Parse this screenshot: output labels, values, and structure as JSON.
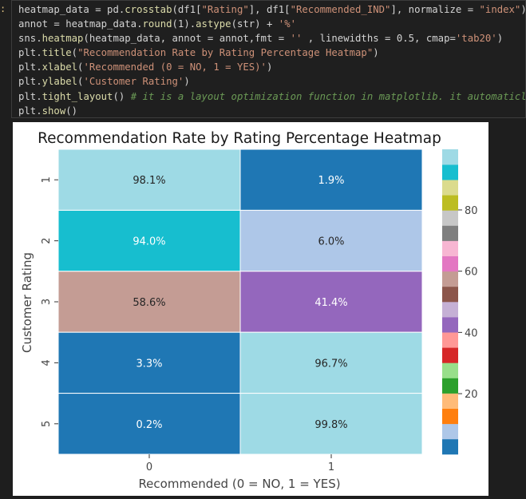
{
  "cell": {
    "prompt": ":",
    "lines": [
      [
        [
          "var",
          "heatmap_data = pd."
        ],
        [
          "fn",
          "crosstab"
        ],
        [
          "var",
          "(df1["
        ],
        [
          "str",
          "\"Rating\""
        ],
        [
          "var",
          "], df1["
        ],
        [
          "str",
          "\"Recommended_IND\""
        ],
        [
          "var",
          "], normalize = "
        ],
        [
          "str",
          "\"index\""
        ],
        [
          "var",
          ") "
        ],
        [
          "op",
          "*"
        ]
      ],
      [
        [
          "var",
          "annot = heatmap_data."
        ],
        [
          "fn",
          "round"
        ],
        [
          "var",
          "(1)."
        ],
        [
          "fn",
          "astype"
        ],
        [
          "var",
          "(str) + "
        ],
        [
          "str",
          "'%'"
        ]
      ],
      [
        [
          "var",
          "sns."
        ],
        [
          "fn",
          "heatmap"
        ],
        [
          "var",
          "(heatmap_data, annot = annot,fmt = "
        ],
        [
          "str",
          "''"
        ],
        [
          "var",
          " , linewidths = 0.5, cmap="
        ],
        [
          "str",
          "'tab20'"
        ],
        [
          "var",
          ")"
        ]
      ],
      [
        [
          "var",
          "plt."
        ],
        [
          "fn",
          "title"
        ],
        [
          "var",
          "("
        ],
        [
          "str",
          "\"Recommendation Rate by Rating Percentage Heatmap\""
        ],
        [
          "var",
          ")"
        ]
      ],
      [
        [
          "var",
          "plt."
        ],
        [
          "fn",
          "xlabel"
        ],
        [
          "var",
          "("
        ],
        [
          "str",
          "'Recommended (0 = NO, 1 = YES)'"
        ],
        [
          "var",
          ")"
        ]
      ],
      [
        [
          "var",
          "plt."
        ],
        [
          "fn",
          "ylabel"
        ],
        [
          "var",
          "("
        ],
        [
          "str",
          "'Customer Rating'"
        ],
        [
          "var",
          ")"
        ]
      ],
      [
        [
          "var",
          "plt."
        ],
        [
          "fn",
          "tight_layout"
        ],
        [
          "var",
          "() "
        ],
        [
          "comment",
          "# it is a layout optimization function in matplotlib. it automaticlly"
        ]
      ],
      [
        [
          "var",
          "plt."
        ],
        [
          "fn",
          "show"
        ],
        [
          "var",
          "()"
        ]
      ]
    ]
  },
  "chart_data": {
    "type": "heatmap",
    "title": "Recommendation Rate by Rating Percentage Heatmap",
    "xlabel": "Recommended (0 = NO, 1 = YES)",
    "ylabel": "Customer Rating",
    "x_categories": [
      "0",
      "1"
    ],
    "y_categories": [
      "1",
      "2",
      "3",
      "4",
      "5"
    ],
    "values": [
      [
        98.1,
        1.9
      ],
      [
        94.0,
        6.0
      ],
      [
        58.6,
        41.4
      ],
      [
        3.3,
        96.7
      ],
      [
        0.2,
        99.8
      ]
    ],
    "annotations": [
      [
        "98.1%",
        "1.9%"
      ],
      [
        "94.0%",
        "6.0%"
      ],
      [
        "58.6%",
        "41.4%"
      ],
      [
        "3.3%",
        "96.7%"
      ],
      [
        "0.2%",
        "99.8%"
      ]
    ],
    "colormap": "tab20",
    "palette": [
      "#1f77b4",
      "#aec7e8",
      "#ff7f0e",
      "#ffbb78",
      "#2ca02c",
      "#98df8a",
      "#d62728",
      "#ff9896",
      "#9467bd",
      "#c5b0d5",
      "#8c564b",
      "#c49c94",
      "#e377c2",
      "#f7b6d2",
      "#7f7f7f",
      "#c7c7c7",
      "#bcbd22",
      "#dbdb8d",
      "#17becf",
      "#9edae5"
    ],
    "vmin": 0.2,
    "vmax": 99.8,
    "colorbar_ticks": [
      20,
      40,
      60,
      80
    ],
    "colorbar_tick_labels": [
      "20",
      "40",
      "60",
      "80"
    ]
  }
}
